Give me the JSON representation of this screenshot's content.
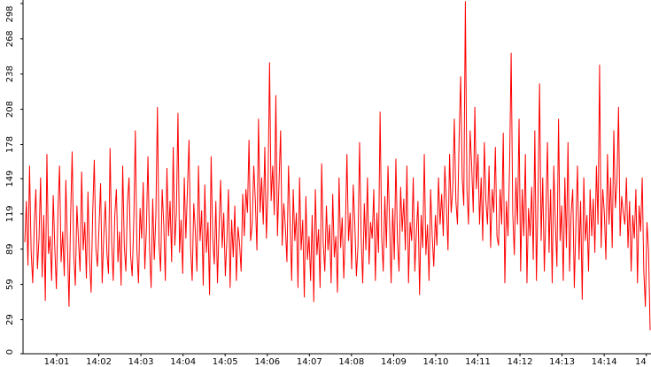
{
  "chart_data": {
    "type": "line",
    "title": "",
    "xlabel": "",
    "ylabel": "",
    "ylim": [
      0,
      298
    ],
    "y_ticks": [
      "0",
      "29",
      "59",
      "89",
      "119",
      "149",
      "178",
      "208",
      "238",
      "268",
      "298"
    ],
    "x_ticks": [
      "14:01",
      "14:02",
      "14:03",
      "14:04",
      "14:05",
      "14:06",
      "14:07",
      "14:08",
      "14:09",
      "14:10",
      "14:11",
      "14:12",
      "14:13",
      "14:14",
      "14"
    ],
    "x_start": "14:00:00",
    "x_end": "14:15:00",
    "grid": false,
    "series": [
      {
        "color": "#ff0000",
        "values": [
          95,
          130,
          75,
          160,
          88,
          60,
          110,
          140,
          72,
          98,
          150,
          65,
          118,
          45,
          170,
          85,
          100,
          62,
          135,
          90,
          55,
          122,
          160,
          78,
          104,
          66,
          148,
          92,
          40,
          115,
          172,
          84,
          58,
          126,
          96,
          70,
          155,
          88,
          112,
          64,
          138,
          80,
          52,
          120,
          165,
          90,
          74,
          108,
          145,
          60,
          100,
          130,
          86,
          68,
          175,
          95,
          62,
          118,
          140,
          78,
          104,
          58,
          160,
          92,
          70,
          128,
          150,
          84,
          66,
          112,
          190,
          88,
          60,
          124,
          98,
          146,
          72,
          106,
          168,
          90,
          56,
          132,
          80,
          118,
          210,
          94,
          70,
          140,
          110,
          62,
          158,
          100,
          130,
          78,
          176,
          92,
          120,
          205,
          86,
          114,
          68,
          150,
          98,
          140,
          182,
          90,
          62,
          128,
          104,
          70,
          160,
          96,
          122,
          58,
          144,
          86,
          112,
          50,
          168,
          98,
          76,
          130,
          60,
          106,
          148,
          90,
          120,
          66,
          98,
          140,
          56,
          114,
          82,
          126,
          62,
          108,
          94,
          70,
          136,
          100,
          140,
          120,
          182,
          96,
          110,
          160,
          130,
          88,
          200,
          120,
          150,
          110,
          176,
          98,
          140,
          248,
          130,
          160,
          118,
          220,
          100,
          146,
          190,
          92,
          128,
          108,
          78,
          160,
          112,
          62,
          140,
          96,
          120,
          56,
          150,
          88,
          114,
          48,
          134,
          80,
          100,
          62,
          118,
          44,
          140,
          84,
          106,
          56,
          162,
          94,
          70,
          126,
          88,
          110,
          60,
          136,
          82,
          100,
          52,
          150,
          90,
          116,
          64,
          104,
          170,
          96,
          120,
          72,
          144,
          110,
          66,
          92,
          180,
          100,
          60,
          128,
          88,
          150,
          76,
          112,
          98,
          140,
          62,
          120,
          86,
          206,
          100,
          70,
          134,
          90,
          160,
          112,
          60,
          124,
          80,
          166,
          96,
          70,
          142,
          104,
          132,
          88,
          160,
          60,
          112,
          96,
          150,
          70,
          104,
          130,
          50,
          118,
          90,
          170,
          84,
          110,
          62,
          140,
          100,
          74,
          118,
          92,
          150,
          110,
          136,
          100,
          160,
          126,
          88,
          170,
          120,
          140,
          200,
          130,
          110,
          180,
          236,
          150,
          126,
          300,
          140,
          110,
          190,
          160,
          120,
          210,
          140,
          170,
          110,
          150,
          96,
          180,
          130,
          110,
          160,
          90,
          140,
          120,
          176,
          100,
          92,
          140,
          110,
          188,
          60,
          130,
          100,
          160,
          256,
          120,
          84,
          150,
          110,
          200,
          70,
          140,
          100,
          170,
          60,
          124,
          100,
          142,
          80,
          190,
          62,
          132,
          230,
          96,
          150,
          70,
          120,
          180,
          86,
          140,
          60,
          160,
          110,
          74,
          200,
          96,
          126,
          62,
          150,
          90,
          180,
          70,
          120,
          140,
          56,
          110,
          160,
          80,
          130,
          46,
          150,
          96,
          118,
          70,
          140,
          100,
          132,
          86,
          160,
          110,
          246,
          90,
          140,
          120,
          80,
          170,
          110,
          150,
          90,
          190,
          124,
          146,
          210,
          100,
          134,
          120,
          110,
          150,
          90,
          130,
          70,
          118,
          98,
          140,
          60,
          126,
          104,
          150,
          70,
          40,
          112,
          88,
          20
        ]
      }
    ]
  }
}
